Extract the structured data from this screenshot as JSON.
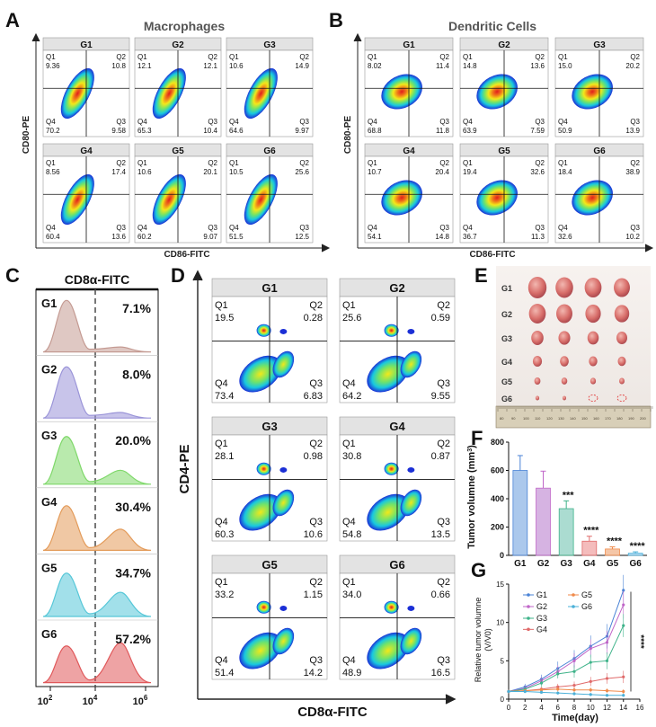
{
  "colors": {
    "flow_low": "#1b2fd6",
    "flow_mid": "#18c8e0",
    "flow_hi": "#f2e81a",
    "flow_peak": "#e11d1d",
    "hist": [
      "#c49a92",
      "#9a94d8",
      "#7fd86a",
      "#e39b5a",
      "#56c7d8",
      "#e0585a"
    ],
    "bars": [
      "#8fb6e6",
      "#c89ad8",
      "#8fd0c2",
      "#f0a6a6",
      "#f2b38a",
      "#9fd0f0"
    ],
    "lines": [
      "#4a83d6",
      "#c066c8",
      "#3fb38a",
      "#e06a6a",
      "#f08a4a",
      "#4ab0d8"
    ]
  },
  "panel_labels": {
    "A": "A",
    "B": "B",
    "C": "C",
    "D": "D",
    "E": "E",
    "F": "F",
    "G": "G"
  },
  "panelA": {
    "title": "Macrophages",
    "xlabel": "CD86-FITC",
    "ylabel": "CD80-PE",
    "groups": [
      {
        "name": "G1",
        "q1": "9.36",
        "q2": "10.8",
        "q3": "9.58",
        "q4": "70.2"
      },
      {
        "name": "G2",
        "q1": "12.1",
        "q2": "12.1",
        "q3": "10.4",
        "q4": "65.3"
      },
      {
        "name": "G3",
        "q1": "10.6",
        "q2": "14.9",
        "q3": "9.97",
        "q4": "64.6"
      },
      {
        "name": "G4",
        "q1": "8.56",
        "q2": "17.4",
        "q3": "13.6",
        "q4": "60.4"
      },
      {
        "name": "G5",
        "q1": "10.6",
        "q2": "20.1",
        "q3": "9.07",
        "q4": "60.2"
      },
      {
        "name": "G6",
        "q1": "10.5",
        "q2": "25.6",
        "q3": "12.5",
        "q4": "51.5"
      }
    ]
  },
  "panelB": {
    "title": "Dendritic Cells",
    "xlabel": "CD86-FITC",
    "ylabel": "CD80-PE",
    "groups": [
      {
        "name": "G1",
        "q1": "8.02",
        "q2": "11.4",
        "q3": "11.8",
        "q4": "68.8"
      },
      {
        "name": "G2",
        "q1": "14.8",
        "q2": "13.6",
        "q3": "7.59",
        "q4": "63.9"
      },
      {
        "name": "G3",
        "q1": "15.0",
        "q2": "20.2",
        "q3": "13.9",
        "q4": "50.9"
      },
      {
        "name": "G4",
        "q1": "10.7",
        "q2": "20.4",
        "q3": "14.8",
        "q4": "54.1"
      },
      {
        "name": "G5",
        "q1": "19.4",
        "q2": "32.6",
        "q3": "11.3",
        "q4": "36.7"
      },
      {
        "name": "G6",
        "q1": "18.4",
        "q2": "38.9",
        "q3": "10.2",
        "q4": "32.6"
      }
    ]
  },
  "panelC": {
    "title": "CD8α-FITC",
    "groups": [
      {
        "name": "G1",
        "pct": "7.1%"
      },
      {
        "name": "G2",
        "pct": "8.0%"
      },
      {
        "name": "G3",
        "pct": "20.0%"
      },
      {
        "name": "G4",
        "pct": "30.4%"
      },
      {
        "name": "G5",
        "pct": "34.7%"
      },
      {
        "name": "G6",
        "pct": "57.2%"
      }
    ],
    "xticks": [
      {
        "base": "10",
        "exp": "2"
      },
      {
        "base": "10",
        "exp": "4"
      },
      {
        "base": "10",
        "exp": "6"
      }
    ]
  },
  "panelD": {
    "xlabel": "CD8α-FITC",
    "ylabel": "CD4-PE",
    "groups": [
      {
        "name": "G1",
        "q1": "19.5",
        "q2": "0.28",
        "q3": "6.83",
        "q4": "73.4"
      },
      {
        "name": "G2",
        "q1": "25.6",
        "q2": "0.59",
        "q3": "9.55",
        "q4": "64.2"
      },
      {
        "name": "G3",
        "q1": "28.1",
        "q2": "0.98",
        "q3": "10.6",
        "q4": "60.3"
      },
      {
        "name": "G4",
        "q1": "30.8",
        "q2": "0.87",
        "q3": "13.5",
        "q4": "54.8"
      },
      {
        "name": "G5",
        "q1": "33.2",
        "q2": "1.15",
        "q3": "14.2",
        "q4": "51.4"
      },
      {
        "name": "G6",
        "q1": "34.0",
        "q2": "0.66",
        "q3": "16.5",
        "q4": "48.9"
      }
    ]
  },
  "panelE": {
    "rows": [
      "G1",
      "G2",
      "G3",
      "G4",
      "G5",
      "G6"
    ],
    "ruler_marks": [
      "80",
      "90",
      "100",
      "110",
      "120",
      "130",
      "140",
      "150",
      "160",
      "170",
      "180",
      "190",
      "200"
    ]
  },
  "quadrant_labels": {
    "q1": "Q1",
    "q2": "Q2",
    "q3": "Q3",
    "q4": "Q4"
  },
  "chart_data": [
    {
      "type": "bar",
      "title": "",
      "categories": [
        "G1",
        "G2",
        "G3",
        "G4",
        "G5",
        "G6"
      ],
      "values": [
        600,
        475,
        330,
        100,
        45,
        15
      ],
      "errors": [
        105,
        120,
        55,
        35,
        15,
        10
      ],
      "significance": [
        "",
        "",
        "***",
        "****",
        "****",
        "****"
      ],
      "xlabel": "",
      "ylabel": "Tumor volumne (mm3)",
      "ylabel_base": "Tumor volumne (mm",
      "ylabel_sup": "3",
      "ylabel_tail": ")",
      "ylim": [
        0,
        800
      ],
      "yticks": [
        "0",
        "200",
        "400",
        "600",
        "800"
      ]
    },
    {
      "type": "line",
      "title": "",
      "x": [
        0,
        2,
        4,
        6,
        8,
        10,
        12,
        14
      ],
      "series": [
        {
          "name": "G1",
          "values": [
            1.0,
            1.6,
            2.6,
            4.0,
            5.3,
            6.9,
            8.2,
            14.2
          ],
          "errors": [
            0.1,
            0.4,
            0.6,
            0.9,
            1.1,
            1.4,
            1.6,
            2.0
          ]
        },
        {
          "name": "G2",
          "values": [
            1.0,
            1.4,
            2.4,
            3.6,
            5.0,
            6.6,
            7.4,
            12.3
          ],
          "errors": [
            0.1,
            0.4,
            0.5,
            0.8,
            1.0,
            1.2,
            1.5,
            1.8
          ]
        },
        {
          "name": "G3",
          "values": [
            1.0,
            1.3,
            2.1,
            3.3,
            3.6,
            4.8,
            5.0,
            9.6
          ],
          "errors": [
            0.1,
            0.3,
            0.5,
            0.6,
            0.8,
            1.0,
            1.1,
            1.5
          ]
        },
        {
          "name": "G4",
          "values": [
            1.0,
            1.1,
            1.3,
            1.6,
            1.8,
            2.3,
            2.7,
            2.9
          ],
          "errors": [
            0.1,
            0.2,
            0.3,
            0.4,
            0.5,
            0.6,
            0.7,
            0.8
          ]
        },
        {
          "name": "G5",
          "values": [
            1.0,
            1.1,
            1.2,
            1.3,
            1.2,
            1.2,
            1.1,
            1.0
          ],
          "errors": [
            0.1,
            0.2,
            0.3,
            0.3,
            0.3,
            0.3,
            0.3,
            0.3
          ]
        },
        {
          "name": "G6",
          "values": [
            1.0,
            1.0,
            0.9,
            0.8,
            0.7,
            0.6,
            0.5,
            0.5
          ],
          "errors": [
            0.1,
            0.2,
            0.2,
            0.2,
            0.2,
            0.2,
            0.2,
            0.2
          ]
        }
      ],
      "significance": "****",
      "xlabel": "Time(day)",
      "ylabel": "Relative tumor volumne (V/V0)",
      "ylabel_line1": "Relative tumor volumne",
      "ylabel_line2": "(V/V0)",
      "xlim": [
        0,
        16
      ],
      "ylim": [
        0,
        15
      ],
      "xticks": [
        "0",
        "2",
        "4",
        "6",
        "8",
        "10",
        "12",
        "14",
        "16"
      ],
      "yticks": [
        "0",
        "5",
        "10",
        "15"
      ]
    }
  ]
}
